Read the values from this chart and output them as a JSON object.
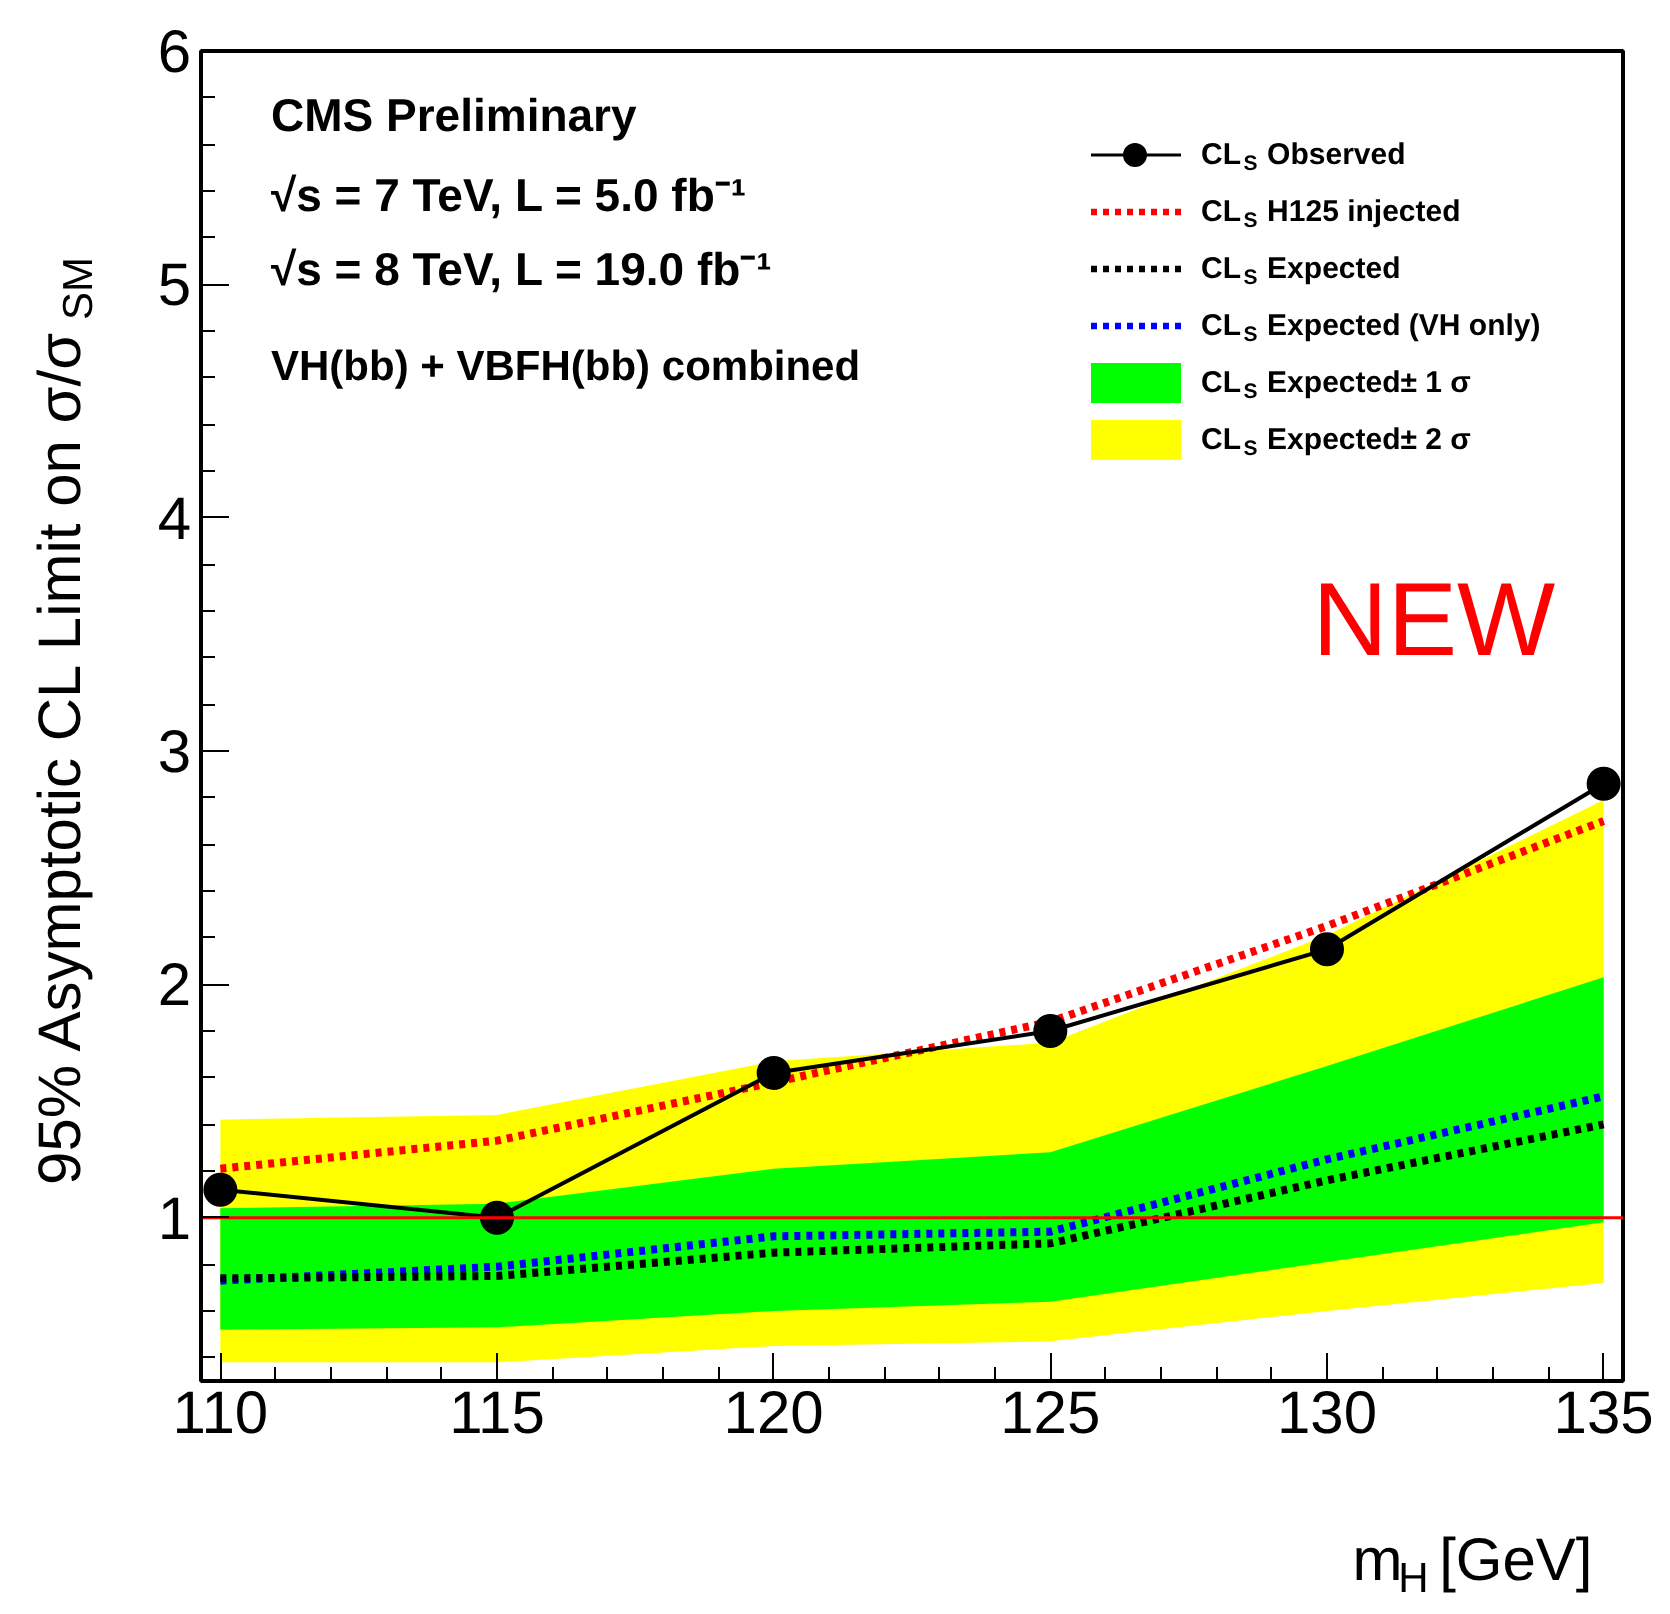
{
  "chart_data": {
    "type": "line",
    "xlabel": "m$_{H}$ [GeV]",
    "ylabel": "95% Asymptotic CL Limit on σ/σ$_{SM}$",
    "x": [
      110,
      115,
      120,
      125,
      130,
      135
    ],
    "xlim": [
      109.65,
      135.35
    ],
    "ylim": [
      0.3,
      6
    ],
    "xticks": [
      110,
      115,
      120,
      125,
      130,
      135
    ],
    "yticks": [
      1,
      2,
      3,
      4,
      5,
      6
    ],
    "legend": "top right",
    "series": [
      {
        "name": "CL$_{S}$ Observed",
        "color": "#000000",
        "line_style": "solid",
        "marker": "circle",
        "values": [
          1.12,
          1.0,
          1.62,
          1.8,
          2.15,
          2.86
        ]
      },
      {
        "name": "CL$_{S}$ H125 injected",
        "color": "#ff0000",
        "line_style": "dotted",
        "values": [
          1.21,
          1.33,
          1.58,
          1.84,
          2.25,
          2.7
        ]
      },
      {
        "name": "CL$_{S}$ Expected",
        "color": "#000000",
        "line_style": "dotted",
        "values": [
          0.74,
          0.75,
          0.85,
          0.89,
          1.16,
          1.4
        ]
      },
      {
        "name": "CL$_{S}$ Expected (VH only)",
        "color": "#0000ff",
        "line_style": "dotted",
        "values": [
          0.73,
          0.79,
          0.92,
          0.94,
          1.25,
          1.52
        ]
      },
      {
        "name": "CL$_{S}$ Expected± 1 σ",
        "type": "area",
        "color": "#00ff00",
        "values": [
          null,
          null,
          null,
          null,
          null,
          null
        ],
        "lower": [
          0.52,
          0.53,
          0.6,
          0.64,
          0.81,
          0.98
        ],
        "upper": [
          1.04,
          1.06,
          1.21,
          1.28,
          1.65,
          2.03
        ]
      },
      {
        "name": "CL$_{S}$ Expected± 2 σ",
        "type": "area",
        "color": "#ffff00",
        "values": [
          null,
          null,
          null,
          null,
          null,
          null
        ],
        "lower": [
          0.38,
          0.38,
          0.45,
          0.47,
          0.6,
          0.72
        ],
        "upper": [
          1.42,
          1.44,
          1.67,
          1.75,
          2.21,
          2.79
        ]
      }
    ],
    "ref_lines": [
      {
        "axis": "y",
        "value": 1,
        "label": null,
        "color": "#ff0000"
      }
    ],
    "annotations": [
      "CMS Preliminary",
      "√s = 7 TeV, L = 5.0 fb⁻¹",
      "√s = 8 TeV, L = 19.0 fb⁻¹",
      "VH(bb) + VBFH(bb) combined",
      "NEW"
    ]
  }
}
